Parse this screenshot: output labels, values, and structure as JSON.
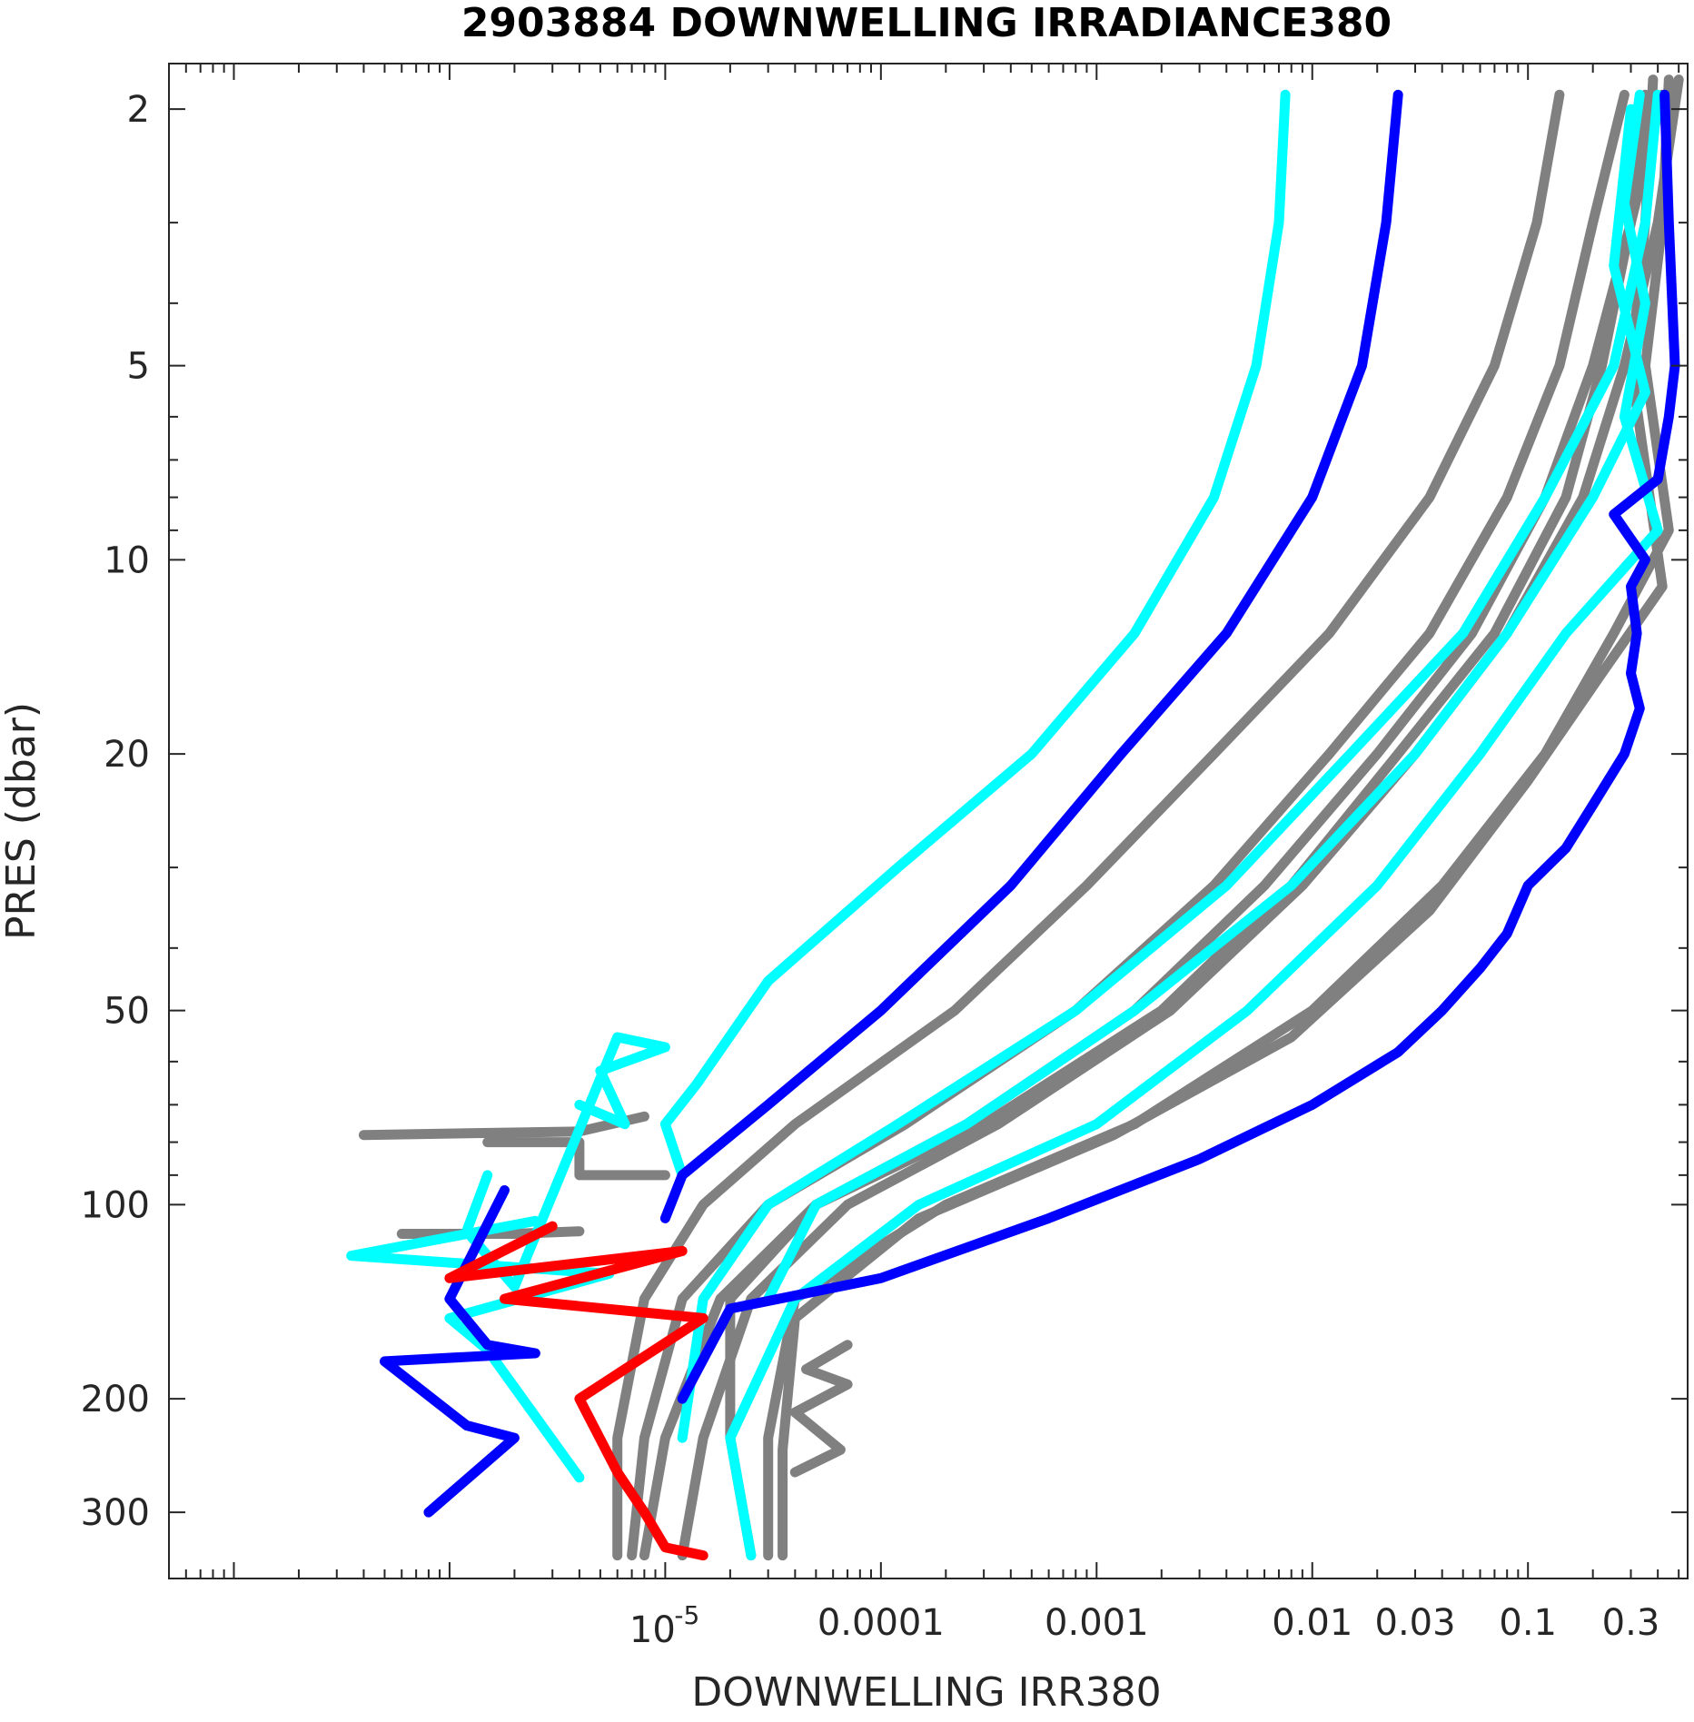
{
  "chart_data": {
    "type": "line",
    "title": "2903884  DOWNWELLING IRRADIANCE380",
    "xlabel": "DOWNWELLING IRR380",
    "ylabel": "PRES (dbar)",
    "xscale": "log",
    "yscale": "log",
    "y_reversed": true,
    "xlim": [
      5e-08,
      0.55
    ],
    "ylim": [
      1.7,
      380
    ],
    "xticks": [
      {
        "value": 1e-05,
        "label": "10",
        "sup": "-5"
      },
      {
        "value": 0.0001,
        "label": "0.0001"
      },
      {
        "value": 0.001,
        "label": "0.001"
      },
      {
        "value": 0.01,
        "label": "0.01"
      },
      {
        "value": 0.03,
        "label": "0.03"
      },
      {
        "value": 0.1,
        "label": "0.1"
      },
      {
        "value": 0.3,
        "label": "0.3"
      }
    ],
    "yticks": [
      {
        "value": 2,
        "label": "2"
      },
      {
        "value": 5,
        "label": "5"
      },
      {
        "value": 10,
        "label": "10"
      },
      {
        "value": 20,
        "label": "20"
      },
      {
        "value": 50,
        "label": "50"
      },
      {
        "value": 100,
        "label": "100"
      },
      {
        "value": 200,
        "label": "200"
      },
      {
        "value": 300,
        "label": "300"
      }
    ],
    "grid": false,
    "legend": "none",
    "colors": {
      "gray": "#808080",
      "cyan": "#00ffff",
      "blue": "#0000ff",
      "red": "#ff0000",
      "axis": "#262626"
    },
    "series": [
      {
        "color": "#808080",
        "x": [
          0.14,
          0.11,
          0.07,
          0.035,
          0.012,
          0.0035,
          0.0009,
          0.00022,
          4e-05,
          1.5e-05,
          8e-06,
          6e-06,
          6e-06
        ],
        "y": [
          1.9,
          3,
          5,
          8,
          13,
          20,
          32,
          50,
          75,
          100,
          140,
          230,
          350
        ]
      },
      {
        "color": "#808080",
        "x": [
          0.28,
          0.2,
          0.14,
          0.08,
          0.035,
          0.012,
          0.0035,
          0.0008,
          0.00013,
          3e-05,
          1.2e-05,
          8e-06,
          7e-06
        ],
        "y": [
          1.9,
          3,
          5,
          8,
          13,
          20,
          32,
          50,
          75,
          100,
          140,
          230,
          350
        ]
      },
      {
        "color": "#808080",
        "x": [
          0.42,
          0.3,
          0.2,
          0.12,
          0.055,
          0.02,
          0.006,
          0.0015,
          0.00025,
          5e-05,
          1.8e-05,
          1e-05,
          8e-06
        ],
        "y": [
          1.9,
          3,
          5,
          8,
          13,
          20,
          32,
          50,
          75,
          100,
          140,
          230,
          350
        ]
      },
      {
        "color": "#808080",
        "x": [
          0.5,
          0.4,
          0.28,
          0.18,
          0.08,
          0.03,
          0.009,
          0.0022,
          0.00035,
          7e-05,
          2.5e-05,
          1.5e-05,
          1.2e-05
        ],
        "y": [
          1.8,
          3,
          5,
          8,
          13,
          20,
          32,
          50,
          75,
          100,
          140,
          230,
          350
        ]
      },
      {
        "color": "#808080",
        "x": [
          0.45,
          0.42,
          0.35,
          0.45,
          0.25,
          0.12,
          0.04,
          0.01,
          0.0015,
          0.0002,
          4e-05,
          3e-05,
          3e-05
        ],
        "y": [
          1.8,
          3,
          5,
          9,
          13,
          20,
          32,
          50,
          75,
          100,
          140,
          230,
          350
        ]
      },
      {
        "color": "#808080",
        "x": [
          0.38,
          0.35,
          0.3,
          0.42,
          0.22,
          0.1,
          0.035,
          0.008,
          0.0012,
          0.00015,
          4e-05,
          3.5e-05,
          3.5e-05
        ],
        "y": [
          1.8,
          3,
          5,
          11,
          15,
          22,
          35,
          55,
          78,
          105,
          150,
          240,
          350
        ]
      },
      {
        "color": "#808080",
        "x": [
          0.35,
          0.3,
          0.22,
          0.15,
          0.07,
          0.025,
          0.008,
          0.002,
          0.0003,
          5e-05,
          2e-05,
          2e-05,
          2.5e-05
        ],
        "y": [
          1.9,
          3,
          5,
          8,
          13,
          20,
          32,
          50,
          75,
          100,
          140,
          230,
          350
        ]
      },
      {
        "color": "#808080",
        "x": [
          1.5e-06,
          2e-06,
          4e-06,
          4e-06,
          1e-05
        ],
        "y": [
          80,
          80,
          80,
          90,
          90
        ]
      },
      {
        "color": "#808080",
        "x": [
          6e-07,
          2e-06,
          4e-06
        ],
        "y": [
          111,
          111,
          110
        ]
      },
      {
        "color": "#808080",
        "x": [
          7e-05,
          4.5e-05,
          7e-05,
          4e-05,
          6.5e-05,
          4e-05
        ],
        "y": [
          165,
          180,
          190,
          210,
          240,
          260
        ]
      },
      {
        "color": "#808080",
        "x": [
          4e-07,
          4e-06,
          8e-06
        ],
        "y": [
          78,
          77,
          73
        ]
      },
      {
        "color": "#00ffff",
        "x": [
          0.0075,
          0.007,
          0.0055,
          0.0035,
          0.0015,
          0.0005,
          0.00012,
          3e-05,
          1.4e-05,
          1e-05,
          1.2e-05
        ],
        "y": [
          1.9,
          3,
          5,
          8,
          13,
          20,
          30,
          45,
          65,
          75,
          90
        ]
      },
      {
        "color": "#00ffff",
        "x": [
          0.4,
          0.35,
          0.25,
          0.12,
          0.05,
          0.015,
          0.004,
          0.0008,
          0.00012,
          3e-05,
          1.5e-05,
          1.2e-05
        ],
        "y": [
          1.9,
          3,
          5,
          8,
          13,
          20,
          32,
          50,
          75,
          100,
          140,
          230
        ]
      },
      {
        "color": "#00ffff",
        "x": [
          0.33,
          0.28,
          0.35,
          0.28,
          0.4,
          0.15,
          0.06,
          0.02,
          0.005,
          0.001,
          0.00015,
          4e-05,
          2e-05,
          2.5e-05
        ],
        "y": [
          1.9,
          2.8,
          4,
          6,
          9,
          13,
          20,
          32,
          50,
          75,
          100,
          140,
          230,
          350
        ]
      },
      {
        "color": "#00ffff",
        "x": [
          0.3,
          0.25,
          0.35,
          0.2,
          0.08,
          0.03,
          0.008,
          0.0015,
          0.00025,
          5e-05,
          3e-05
        ],
        "y": [
          2,
          3.5,
          5.5,
          8,
          13,
          20,
          32,
          50,
          75,
          100,
          140
        ]
      },
      {
        "color": "#00ffff",
        "x": [
          2.5e-06,
          3.5e-07,
          5.5e-06,
          1e-06,
          1.5e-06,
          4e-06
        ],
        "y": [
          106,
          120,
          128,
          150,
          168,
          265
        ]
      },
      {
        "color": "#00ffff",
        "x": [
          1.5e-06,
          1.2e-06,
          2e-06,
          6e-06,
          1e-05,
          5e-06,
          6.5e-06,
          4e-06
        ],
        "y": [
          90,
          110,
          134,
          55,
          57,
          62,
          75,
          70
        ]
      },
      {
        "color": "#0000ff",
        "x": [
          0.025,
          0.022,
          0.017,
          0.01,
          0.004,
          0.0013,
          0.0004,
          0.0001,
          3e-05,
          1.2e-05,
          1e-05
        ],
        "y": [
          1.9,
          3,
          5,
          8,
          13,
          20,
          32,
          50,
          70,
          90,
          105
        ]
      },
      {
        "color": "#0000ff",
        "x": [
          0.43,
          0.45,
          0.48,
          0.45,
          0.4,
          0.25,
          0.35,
          0.3,
          0.32,
          0.3,
          0.33,
          0.28,
          0.2,
          0.15,
          0.1,
          0.08,
          0.06,
          0.04,
          0.025,
          0.01,
          0.003,
          0.0006,
          0.0001,
          2e-05,
          1.2e-05
        ],
        "y": [
          1.9,
          3,
          5,
          6,
          7.5,
          8.5,
          10,
          11,
          13,
          15,
          17,
          20,
          24,
          28,
          32,
          38,
          43,
          50,
          58,
          70,
          85,
          105,
          130,
          145,
          200
        ]
      },
      {
        "color": "#0000ff",
        "x": [
          1.8e-06,
          1e-06,
          1.5e-06,
          2.5e-06,
          5e-07,
          1.2e-06,
          2e-06,
          8e-07
        ],
        "y": [
          95,
          140,
          165,
          170,
          175,
          220,
          230,
          300
        ]
      },
      {
        "color": "#ff0000",
        "x": [
          3e-06,
          1e-06,
          1.2e-05,
          1.8e-06,
          1.5e-05,
          4e-06,
          6e-06,
          8e-06,
          1e-05,
          1.5e-05
        ],
        "y": [
          108,
          130,
          118,
          140,
          150,
          200,
          260,
          300,
          340,
          350
        ]
      }
    ]
  }
}
